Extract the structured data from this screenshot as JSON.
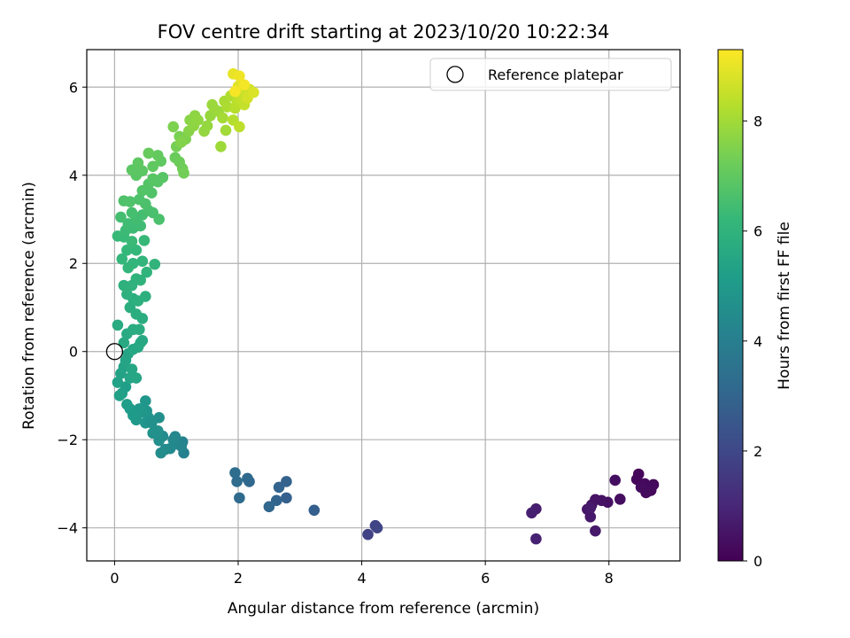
{
  "chart_data": {
    "type": "scatter",
    "title": "FOV centre drift starting at 2023/10/20 10:22:34",
    "xlabel": "Angular distance from reference (arcmin)",
    "ylabel": "Rotation from reference (arcmin)",
    "xlim": [
      -0.45,
      9.15
    ],
    "ylim": [
      -4.75,
      6.85
    ],
    "xticks": [
      0,
      2,
      4,
      6,
      8
    ],
    "yticks": [
      -4,
      -2,
      0,
      2,
      4,
      6
    ],
    "xtick_labels": [
      "0",
      "2",
      "4",
      "6",
      "8"
    ],
    "ytick_labels": [
      "−4",
      "−2",
      "0",
      "2",
      "4",
      "6"
    ],
    "grid": true,
    "legend_position": "top-right",
    "legend_label": "Reference platepar",
    "reference_point": {
      "x": 0,
      "y": 0
    },
    "colorbar": {
      "label": "Hours from first FF file",
      "min": 0,
      "max": 9.3,
      "ticks": [
        0,
        2,
        4,
        6,
        8
      ],
      "tick_labels": [
        "0",
        "2",
        "4",
        "6",
        "8"
      ],
      "colormap": "viridis"
    },
    "points": [
      [
        8.72,
        -3.02,
        0.05
      ],
      [
        8.65,
        -3.1,
        0.08
      ],
      [
        8.6,
        -3.2,
        0.1
      ],
      [
        8.55,
        -3.05,
        0.12
      ],
      [
        8.48,
        -2.78,
        0.15
      ],
      [
        8.45,
        -2.9,
        0.17
      ],
      [
        8.68,
        -3.15,
        0.2
      ],
      [
        8.58,
        -3.0,
        0.22
      ],
      [
        8.7,
        -3.05,
        0.25
      ],
      [
        8.62,
        -3.18,
        0.27
      ],
      [
        8.52,
        -3.08,
        0.3
      ],
      [
        8.18,
        -3.35,
        0.35
      ],
      [
        8.1,
        -2.92,
        0.38
      ],
      [
        7.98,
        -3.42,
        0.42
      ],
      [
        7.88,
        -3.38,
        0.45
      ],
      [
        7.78,
        -3.36,
        0.48
      ],
      [
        7.72,
        -3.48,
        0.52
      ],
      [
        7.65,
        -3.58,
        0.56
      ],
      [
        7.7,
        -3.75,
        0.6
      ],
      [
        7.78,
        -4.07,
        0.63
      ],
      [
        7.7,
        -3.55,
        0.66
      ],
      [
        6.82,
        -3.57,
        0.75
      ],
      [
        6.75,
        -3.66,
        0.8
      ],
      [
        6.82,
        -4.25,
        0.85
      ],
      [
        4.1,
        -4.15,
        1.8
      ],
      [
        4.22,
        -3.95,
        1.85
      ],
      [
        4.25,
        -4.0,
        1.9
      ],
      [
        3.23,
        -3.6,
        2.8
      ],
      [
        2.78,
        -3.32,
        2.85
      ],
      [
        2.78,
        -2.95,
        2.9
      ],
      [
        2.66,
        -3.08,
        2.95
      ],
      [
        2.62,
        -3.38,
        3.0
      ],
      [
        2.5,
        -3.52,
        3.05
      ],
      [
        2.18,
        -2.95,
        3.1
      ],
      [
        2.15,
        -2.88,
        3.15
      ],
      [
        2.02,
        -3.32,
        3.2
      ],
      [
        1.98,
        -2.95,
        3.25
      ],
      [
        1.95,
        -2.75,
        3.3
      ],
      [
        1.12,
        -2.3,
        4.1
      ],
      [
        1.1,
        -2.05,
        4.15
      ],
      [
        1.08,
        -2.15,
        4.2
      ],
      [
        1.02,
        -2.1,
        4.25
      ],
      [
        0.98,
        -1.93,
        4.3
      ],
      [
        0.95,
        -2.0,
        4.35
      ],
      [
        0.9,
        -2.2,
        4.4
      ],
      [
        0.82,
        -2.22,
        4.45
      ],
      [
        0.78,
        -1.92,
        4.5
      ],
      [
        0.75,
        -2.3,
        4.55
      ],
      [
        0.72,
        -2.02,
        4.6
      ],
      [
        0.7,
        -1.8,
        4.65
      ],
      [
        0.62,
        -1.85,
        4.7
      ],
      [
        0.55,
        -1.5,
        4.75
      ],
      [
        0.52,
        -1.35,
        4.8
      ],
      [
        0.5,
        -1.62,
        4.85
      ],
      [
        0.45,
        -1.38,
        4.9
      ],
      [
        0.4,
        -1.3,
        4.95
      ],
      [
        0.35,
        -1.55,
        5.0
      ],
      [
        0.3,
        -1.45,
        5.05
      ],
      [
        0.25,
        -1.3,
        5.1
      ],
      [
        0.2,
        -1.2,
        5.15
      ],
      [
        0.72,
        -1.5,
        4.62
      ],
      [
        0.6,
        -1.62,
        4.68
      ],
      [
        0.5,
        -1.12,
        4.88
      ],
      [
        0.18,
        -0.8,
        5.2
      ],
      [
        0.12,
        -0.95,
        5.25
      ],
      [
        0.08,
        -1.0,
        5.3
      ],
      [
        0.05,
        -0.7,
        5.32
      ],
      [
        0.1,
        -0.5,
        5.35
      ],
      [
        0.15,
        -0.35,
        5.38
      ],
      [
        0.18,
        -0.2,
        5.4
      ],
      [
        0.22,
        -0.05,
        5.42
      ],
      [
        0.25,
        -0.6,
        5.45
      ],
      [
        0.35,
        -0.6,
        5.48
      ],
      [
        0.28,
        -0.4,
        5.5
      ],
      [
        0.3,
        0.05,
        5.52
      ],
      [
        0.38,
        0.1,
        5.55
      ],
      [
        0.42,
        0.2,
        5.58
      ],
      [
        0.45,
        0.25,
        5.6
      ],
      [
        0.15,
        0.2,
        5.62
      ],
      [
        0.2,
        0.4,
        5.65
      ],
      [
        0.05,
        0.6,
        5.68
      ],
      [
        0.3,
        0.5,
        5.7
      ],
      [
        0.4,
        0.5,
        5.72
      ],
      [
        0.45,
        0.75,
        5.75
      ],
      [
        0.35,
        0.85,
        5.78
      ],
      [
        0.25,
        1.0,
        5.8
      ],
      [
        0.3,
        1.2,
        5.82
      ],
      [
        0.38,
        1.15,
        5.85
      ],
      [
        0.5,
        1.25,
        5.88
      ],
      [
        0.2,
        1.3,
        5.9
      ],
      [
        0.15,
        1.5,
        5.92
      ],
      [
        0.28,
        1.5,
        5.95
      ],
      [
        0.35,
        1.65,
        5.98
      ],
      [
        0.42,
        1.62,
        6.0
      ],
      [
        0.52,
        1.8,
        6.02
      ],
      [
        0.65,
        1.98,
        6.05
      ],
      [
        0.45,
        2.05,
        6.08
      ],
      [
        0.3,
        2.0,
        6.1
      ],
      [
        0.22,
        1.9,
        6.12
      ],
      [
        0.12,
        2.1,
        6.15
      ],
      [
        0.2,
        2.3,
        6.18
      ],
      [
        0.35,
        2.3,
        6.2
      ],
      [
        0.48,
        2.52,
        6.22
      ],
      [
        0.05,
        2.62,
        6.25
      ],
      [
        0.15,
        2.6,
        6.28
      ],
      [
        0.28,
        2.5,
        6.3
      ],
      [
        0.18,
        2.75,
        6.32
      ],
      [
        0.3,
        2.8,
        6.35
      ],
      [
        0.42,
        2.85,
        6.38
      ],
      [
        0.22,
        2.9,
        6.4
      ],
      [
        0.35,
        3.02,
        6.45
      ],
      [
        0.45,
        3.1,
        6.48
      ],
      [
        0.1,
        3.05,
        6.5
      ],
      [
        0.28,
        3.15,
        6.52
      ],
      [
        0.55,
        3.2,
        6.55
      ],
      [
        0.62,
        3.15,
        6.58
      ],
      [
        0.72,
        3.0,
        6.6
      ],
      [
        0.5,
        3.35,
        6.62
      ],
      [
        0.4,
        3.45,
        6.65
      ],
      [
        0.15,
        3.42,
        6.68
      ],
      [
        0.25,
        3.4,
        6.7
      ],
      [
        0.6,
        3.6,
        6.72
      ],
      [
        0.45,
        3.65,
        6.75
      ],
      [
        0.55,
        3.8,
        6.78
      ],
      [
        0.7,
        3.85,
        6.8
      ],
      [
        0.78,
        3.95,
        6.82
      ],
      [
        0.62,
        3.92,
        6.85
      ],
      [
        0.35,
        4.0,
        6.88
      ],
      [
        0.45,
        4.1,
        6.9
      ],
      [
        0.28,
        4.12,
        6.92
      ],
      [
        0.38,
        4.28,
        6.95
      ],
      [
        0.62,
        4.2,
        6.98
      ],
      [
        0.75,
        4.32,
        7.0
      ],
      [
        0.7,
        4.45,
        7.05
      ],
      [
        0.55,
        4.5,
        7.1
      ],
      [
        0.98,
        4.4,
        7.15
      ],
      [
        1.05,
        4.3,
        7.2
      ],
      [
        1.1,
        4.15,
        7.25
      ],
      [
        1.12,
        4.05,
        7.3
      ],
      [
        1.0,
        4.65,
        7.35
      ],
      [
        1.05,
        4.88,
        7.4
      ],
      [
        0.95,
        5.1,
        7.45
      ],
      [
        1.15,
        4.82,
        7.5
      ],
      [
        1.08,
        4.75,
        7.55
      ],
      [
        1.2,
        5.0,
        7.6
      ],
      [
        1.22,
        5.25,
        7.65
      ],
      [
        1.3,
        5.35,
        7.7
      ],
      [
        1.28,
        5.12,
        7.72
      ],
      [
        1.35,
        5.25,
        7.75
      ],
      [
        1.45,
        5.0,
        7.8
      ],
      [
        1.5,
        5.12,
        7.82
      ],
      [
        1.55,
        5.35,
        7.85
      ],
      [
        1.62,
        5.5,
        7.88
      ],
      [
        1.58,
        5.6,
        7.9
      ],
      [
        1.68,
        5.45,
        7.92
      ],
      [
        1.72,
        4.65,
        7.95
      ],
      [
        1.8,
        5.02,
        8.0
      ],
      [
        1.75,
        5.3,
        8.05
      ],
      [
        1.78,
        5.68,
        8.1
      ],
      [
        1.82,
        5.55,
        8.15
      ],
      [
        1.88,
        5.8,
        8.2
      ],
      [
        1.92,
        5.25,
        8.25
      ],
      [
        1.95,
        5.52,
        8.3
      ],
      [
        1.98,
        5.65,
        8.35
      ],
      [
        2.02,
        5.1,
        8.4
      ],
      [
        2.05,
        5.72,
        8.45
      ],
      [
        2.1,
        5.6,
        8.5
      ],
      [
        2.05,
        5.85,
        8.55
      ],
      [
        2.12,
        5.9,
        8.6
      ],
      [
        2.18,
        5.95,
        8.65
      ],
      [
        2.15,
        5.75,
        8.7
      ],
      [
        2.25,
        5.88,
        8.8
      ],
      [
        2.0,
        6.02,
        8.9
      ],
      [
        1.92,
        6.3,
        9.0
      ],
      [
        2.02,
        6.25,
        9.1
      ],
      [
        2.1,
        6.05,
        9.15
      ],
      [
        1.95,
        5.9,
        9.2
      ]
    ]
  }
}
